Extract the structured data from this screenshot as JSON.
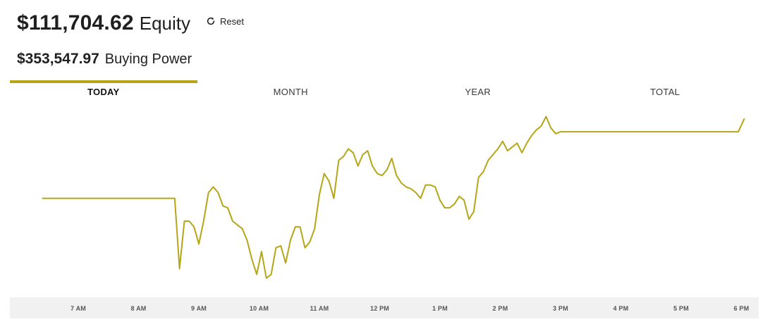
{
  "header": {
    "equity_value": "$111,704.62",
    "equity_label": "Equity",
    "reset_label": "Reset",
    "reset_icon": "refresh-icon",
    "buying_power_value": "$353,547.97",
    "buying_power_label": "Buying Power"
  },
  "tabs": [
    {
      "label": "TODAY",
      "active": true
    },
    {
      "label": "MONTH",
      "active": false
    },
    {
      "label": "YEAR",
      "active": false
    },
    {
      "label": "TOTAL",
      "active": false
    }
  ],
  "colors": {
    "accent": "#b5a517",
    "axis_band": "#f1f1f1"
  },
  "chart_data": {
    "type": "line",
    "x_unit": "hour of day",
    "xlim": [
      6.3,
      18.1
    ],
    "ylim": [
      0,
      100
    ],
    "x_ticks": [
      {
        "value": 7,
        "label": "7 AM"
      },
      {
        "value": 8,
        "label": "8 AM"
      },
      {
        "value": 9,
        "label": "9 AM"
      },
      {
        "value": 10,
        "label": "10 AM"
      },
      {
        "value": 11,
        "label": "11 AM"
      },
      {
        "value": 12,
        "label": "12 PM"
      },
      {
        "value": 13,
        "label": "1 PM"
      },
      {
        "value": 14,
        "label": "2 PM"
      },
      {
        "value": 15,
        "label": "3 PM"
      },
      {
        "value": 16,
        "label": "4 PM"
      },
      {
        "value": 17,
        "label": "5 PM"
      },
      {
        "value": 18,
        "label": "6 PM"
      }
    ],
    "series": [
      {
        "points": [
          [
            6.4,
            52
          ],
          [
            8.6,
            52
          ],
          [
            8.68,
            15
          ],
          [
            8.76,
            40
          ],
          [
            8.84,
            40
          ],
          [
            8.92,
            37
          ],
          [
            9.0,
            28
          ],
          [
            9.08,
            40
          ],
          [
            9.16,
            55
          ],
          [
            9.24,
            58
          ],
          [
            9.32,
            55
          ],
          [
            9.4,
            48
          ],
          [
            9.48,
            47
          ],
          [
            9.56,
            40
          ],
          [
            9.64,
            38
          ],
          [
            9.72,
            36
          ],
          [
            9.8,
            30
          ],
          [
            9.88,
            20
          ],
          [
            9.96,
            12
          ],
          [
            10.04,
            24
          ],
          [
            10.12,
            10
          ],
          [
            10.2,
            12
          ],
          [
            10.28,
            26
          ],
          [
            10.36,
            27
          ],
          [
            10.44,
            18
          ],
          [
            10.52,
            30
          ],
          [
            10.6,
            37
          ],
          [
            10.68,
            37
          ],
          [
            10.76,
            26
          ],
          [
            10.84,
            29
          ],
          [
            10.92,
            36
          ],
          [
            11.0,
            54
          ],
          [
            11.08,
            65
          ],
          [
            11.16,
            61
          ],
          [
            11.24,
            52
          ],
          [
            11.32,
            72
          ],
          [
            11.4,
            74
          ],
          [
            11.48,
            78
          ],
          [
            11.56,
            76
          ],
          [
            11.64,
            69
          ],
          [
            11.72,
            75
          ],
          [
            11.8,
            77
          ],
          [
            11.88,
            69
          ],
          [
            11.96,
            65
          ],
          [
            12.04,
            64
          ],
          [
            12.12,
            67
          ],
          [
            12.2,
            73
          ],
          [
            12.28,
            64
          ],
          [
            12.36,
            60
          ],
          [
            12.44,
            58
          ],
          [
            12.52,
            57
          ],
          [
            12.6,
            55
          ],
          [
            12.68,
            52
          ],
          [
            12.76,
            59
          ],
          [
            12.84,
            59
          ],
          [
            12.92,
            58
          ],
          [
            13.0,
            51
          ],
          [
            13.08,
            47
          ],
          [
            13.16,
            47
          ],
          [
            13.24,
            49
          ],
          [
            13.32,
            53
          ],
          [
            13.4,
            51
          ],
          [
            13.48,
            41
          ],
          [
            13.56,
            45
          ],
          [
            13.64,
            63
          ],
          [
            13.72,
            66
          ],
          [
            13.8,
            72
          ],
          [
            13.88,
            75
          ],
          [
            13.96,
            78
          ],
          [
            14.04,
            82
          ],
          [
            14.12,
            77
          ],
          [
            14.2,
            79
          ],
          [
            14.28,
            81
          ],
          [
            14.36,
            76
          ],
          [
            14.44,
            81
          ],
          [
            14.52,
            85
          ],
          [
            14.6,
            88
          ],
          [
            14.68,
            90
          ],
          [
            14.76,
            95
          ],
          [
            14.84,
            89
          ],
          [
            14.92,
            86
          ],
          [
            15.0,
            87
          ],
          [
            15.08,
            87
          ],
          [
            17.95,
            87
          ],
          [
            18.05,
            94
          ]
        ]
      }
    ]
  }
}
